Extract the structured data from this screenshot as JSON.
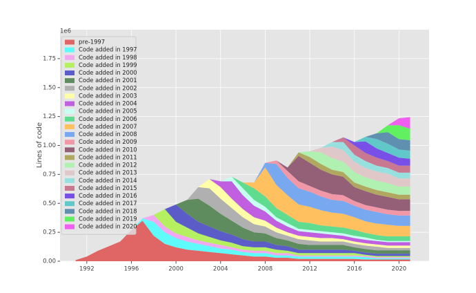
{
  "chart_data": {
    "type": "stacked_area",
    "y_label": "Lines of code",
    "y_offset_label": "1e6",
    "x": [
      1991,
      1992,
      1993,
      1994,
      1995,
      1996,
      1997,
      1998,
      1999,
      2000,
      2001,
      2002,
      2003,
      2004,
      2005,
      2006,
      2007,
      2008,
      2009,
      2010,
      2011,
      2012,
      2013,
      2014,
      2015,
      2016,
      2017,
      2018,
      2019,
      2020,
      2021
    ],
    "xlim": [
      1989.6,
      2022.7
    ],
    "xticks": [
      1992,
      1996,
      2000,
      2004,
      2008,
      2012,
      2016,
      2020
    ],
    "ylim": [
      0,
      2.0
    ],
    "yticks": [
      {
        "value": 0,
        "label": "0.00"
      },
      {
        "value": 0.25,
        "label": "0.25"
      },
      {
        "value": 0.5,
        "label": "0.50"
      },
      {
        "value": 0.75,
        "label": "0.75"
      },
      {
        "value": 1,
        "label": "1.00"
      },
      {
        "value": 1.25,
        "label": "1.25"
      },
      {
        "value": 1.5,
        "label": "1.50"
      },
      {
        "value": 1.75,
        "label": "1.75"
      }
    ],
    "grid": true,
    "legend": "upper left",
    "series": [
      {
        "name": "pre-1997",
        "color": "#e06666",
        "values": [
          0.01,
          0.04,
          0.09,
          0.13,
          0.17,
          0.27,
          0.35,
          0.22,
          0.15,
          0.12,
          0.1,
          0.09,
          0.08,
          0.07,
          0.06,
          0.05,
          0.04,
          0.04,
          0.03,
          0.03,
          0.02,
          0.02,
          0.02,
          0.02,
          0.02,
          0.02,
          0.015,
          0.015,
          0.015,
          0.015,
          0.015
        ]
      },
      {
        "name": "Code added in 1997",
        "color": "#5ffafa",
        "values": [
          0,
          0,
          0,
          0,
          0,
          0,
          0.02,
          0.12,
          0.1,
          0.08,
          0.07,
          0.06,
          0.05,
          0.04,
          0.04,
          0.03,
          0.03,
          0.03,
          0.02,
          0.02,
          0.02,
          0.02,
          0.02,
          0.02,
          0.02,
          0.02,
          0.02,
          0.01,
          0.01,
          0.01,
          0.01
        ]
      },
      {
        "name": "Code added in 1998",
        "color": "#f0a8f0",
        "values": [
          0,
          0,
          0,
          0,
          0,
          0,
          0,
          0.06,
          0.05,
          0.04,
          0.04,
          0.03,
          0.03,
          0.03,
          0.02,
          0.02,
          0.02,
          0.02,
          0.02,
          0.02,
          0.01,
          0.01,
          0.01,
          0.01,
          0.01,
          0.01,
          0.01,
          0.01,
          0.01,
          0.01,
          0.01
        ]
      },
      {
        "name": "Code added in 1999",
        "color": "#b4f060",
        "values": [
          0,
          0,
          0,
          0,
          0,
          0,
          0,
          0,
          0.15,
          0.1,
          0.08,
          0.06,
          0.05,
          0.04,
          0.04,
          0.03,
          0.03,
          0.03,
          0.03,
          0.02,
          0.02,
          0.02,
          0.02,
          0.02,
          0.02,
          0.02,
          0.01,
          0.01,
          0.01,
          0.01,
          0.01
        ]
      },
      {
        "name": "Code added in 2000",
        "color": "#5c5cc8",
        "values": [
          0,
          0,
          0,
          0,
          0,
          0,
          0,
          0,
          0,
          0.15,
          0.12,
          0.1,
          0.09,
          0.08,
          0.07,
          0.06,
          0.05,
          0.05,
          0.04,
          0.04,
          0.03,
          0.03,
          0.03,
          0.03,
          0.03,
          0.02,
          0.02,
          0.02,
          0.02,
          0.02,
          0.02
        ]
      },
      {
        "name": "Code added in 2001",
        "color": "#5e8c5e",
        "values": [
          0,
          0,
          0,
          0,
          0,
          0,
          0,
          0,
          0,
          0,
          0.12,
          0.2,
          0.18,
          0.15,
          0.12,
          0.1,
          0.08,
          0.07,
          0.06,
          0.05,
          0.05,
          0.04,
          0.04,
          0.04,
          0.04,
          0.03,
          0.03,
          0.03,
          0.03,
          0.03,
          0.03
        ]
      },
      {
        "name": "Code added in 2002",
        "color": "#b0b0b0",
        "values": [
          0,
          0,
          0,
          0,
          0,
          0,
          0,
          0,
          0,
          0,
          0,
          0.1,
          0.15,
          0.13,
          0.11,
          0.09,
          0.07,
          0.06,
          0.05,
          0.04,
          0.04,
          0.04,
          0.03,
          0.03,
          0.03,
          0.03,
          0.03,
          0.03,
          0.02,
          0.02,
          0.02
        ]
      },
      {
        "name": "Code added in 2003",
        "color": "#ffffa8",
        "values": [
          0,
          0,
          0,
          0,
          0,
          0,
          0,
          0,
          0,
          0,
          0,
          0,
          0.08,
          0.1,
          0.08,
          0.07,
          0.06,
          0.05,
          0.04,
          0.03,
          0.03,
          0.03,
          0.03,
          0.03,
          0.02,
          0.02,
          0.02,
          0.02,
          0.02,
          0.02,
          0.02
        ]
      },
      {
        "name": "Code added in 2004",
        "color": "#c060e0",
        "values": [
          0,
          0,
          0,
          0,
          0,
          0,
          0,
          0,
          0,
          0,
          0,
          0,
          0,
          0.05,
          0.15,
          0.12,
          0.1,
          0.08,
          0.06,
          0.05,
          0.04,
          0.04,
          0.04,
          0.03,
          0.03,
          0.03,
          0.03,
          0.03,
          0.03,
          0.03,
          0.03
        ]
      },
      {
        "name": "Code added in 2005",
        "color": "#c8fff4",
        "values": [
          0,
          0,
          0,
          0,
          0,
          0,
          0,
          0,
          0,
          0,
          0,
          0,
          0,
          0,
          0.04,
          0.06,
          0.05,
          0.04,
          0.03,
          0.03,
          0.02,
          0.02,
          0.02,
          0.02,
          0.02,
          0.02,
          0.02,
          0.01,
          0.01,
          0.01,
          0.01
        ]
      },
      {
        "name": "Code added in 2006",
        "color": "#60dc90",
        "values": [
          0,
          0,
          0,
          0,
          0,
          0,
          0,
          0,
          0,
          0,
          0,
          0,
          0,
          0,
          0,
          0.05,
          0.1,
          0.09,
          0.08,
          0.07,
          0.06,
          0.06,
          0.05,
          0.05,
          0.05,
          0.05,
          0.04,
          0.04,
          0.04,
          0.04,
          0.04
        ]
      },
      {
        "name": "Code added in 2007",
        "color": "#ffc060",
        "values": [
          0,
          0,
          0,
          0,
          0,
          0,
          0,
          0,
          0,
          0,
          0,
          0,
          0,
          0,
          0,
          0,
          0.05,
          0.25,
          0.2,
          0.17,
          0.15,
          0.14,
          0.13,
          0.12,
          0.12,
          0.11,
          0.1,
          0.1,
          0.1,
          0.09,
          0.09
        ]
      },
      {
        "name": "Code added in 2008",
        "color": "#78a8f0",
        "values": [
          0,
          0,
          0,
          0,
          0,
          0,
          0,
          0,
          0,
          0,
          0,
          0,
          0,
          0,
          0,
          0,
          0,
          0.04,
          0.18,
          0.15,
          0.14,
          0.13,
          0.12,
          0.11,
          0.11,
          0.1,
          0.1,
          0.1,
          0.09,
          0.09,
          0.09
        ]
      },
      {
        "name": "Code added in 2009",
        "color": "#f098a8",
        "values": [
          0,
          0,
          0,
          0,
          0,
          0,
          0,
          0,
          0,
          0,
          0,
          0,
          0,
          0,
          0,
          0,
          0,
          0,
          0.03,
          0.06,
          0.06,
          0.05,
          0.05,
          0.05,
          0.05,
          0.04,
          0.04,
          0.04,
          0.04,
          0.04,
          0.04
        ]
      },
      {
        "name": "Code added in 2010",
        "color": "#946078",
        "values": [
          0,
          0,
          0,
          0,
          0,
          0,
          0,
          0,
          0,
          0,
          0,
          0,
          0,
          0,
          0,
          0,
          0,
          0,
          0,
          0.03,
          0.22,
          0.2,
          0.18,
          0.17,
          0.16,
          0.12,
          0.12,
          0.11,
          0.11,
          0.1,
          0.1
        ]
      },
      {
        "name": "Code added in 2011",
        "color": "#b0a860",
        "values": [
          0,
          0,
          0,
          0,
          0,
          0,
          0,
          0,
          0,
          0,
          0,
          0,
          0,
          0,
          0,
          0,
          0,
          0,
          0,
          0,
          0.03,
          0.05,
          0.05,
          0.04,
          0.04,
          0.04,
          0.04,
          0.04,
          0.04,
          0.04,
          0.04
        ]
      },
      {
        "name": "Code added in 2012",
        "color": "#b0f0b0",
        "values": [
          0,
          0,
          0,
          0,
          0,
          0,
          0,
          0,
          0,
          0,
          0,
          0,
          0,
          0,
          0,
          0,
          0,
          0,
          0,
          0,
          0,
          0.05,
          0.1,
          0.1,
          0.09,
          0.09,
          0.08,
          0.08,
          0.08,
          0.07,
          0.07
        ]
      },
      {
        "name": "Code added in 2013",
        "color": "#e0c8c8",
        "values": [
          0,
          0,
          0,
          0,
          0,
          0,
          0,
          0,
          0,
          0,
          0,
          0,
          0,
          0,
          0,
          0,
          0,
          0,
          0,
          0,
          0,
          0,
          0.04,
          0.1,
          0.1,
          0.09,
          0.08,
          0.08,
          0.08,
          0.07,
          0.07
        ]
      },
      {
        "name": "Code added in 2014",
        "color": "#98e0e0",
        "values": [
          0,
          0,
          0,
          0,
          0,
          0,
          0,
          0,
          0,
          0,
          0,
          0,
          0,
          0,
          0,
          0,
          0,
          0,
          0,
          0,
          0,
          0,
          0,
          0.04,
          0.07,
          0.06,
          0.06,
          0.05,
          0.05,
          0.05,
          0.05
        ]
      },
      {
        "name": "Code added in 2015",
        "color": "#c87890",
        "values": [
          0,
          0,
          0,
          0,
          0,
          0,
          0,
          0,
          0,
          0,
          0,
          0,
          0,
          0,
          0,
          0,
          0,
          0,
          0,
          0,
          0,
          0,
          0,
          0,
          0.04,
          0.08,
          0.07,
          0.07,
          0.06,
          0.06,
          0.06
        ]
      },
      {
        "name": "Code added in 2016",
        "color": "#7850e8",
        "values": [
          0,
          0,
          0,
          0,
          0,
          0,
          0,
          0,
          0,
          0,
          0,
          0,
          0,
          0,
          0,
          0,
          0,
          0,
          0,
          0,
          0,
          0,
          0,
          0,
          0,
          0.03,
          0.1,
          0.08,
          0.07,
          0.07,
          0.06
        ]
      },
      {
        "name": "Code added in 2017",
        "color": "#60c8c8",
        "values": [
          0,
          0,
          0,
          0,
          0,
          0,
          0,
          0,
          0,
          0,
          0,
          0,
          0,
          0,
          0,
          0,
          0,
          0,
          0,
          0,
          0,
          0,
          0,
          0,
          0,
          0,
          0.04,
          0.08,
          0.08,
          0.07,
          0.07
        ]
      },
      {
        "name": "Code added in 2018",
        "color": "#6090b0",
        "values": [
          0,
          0,
          0,
          0,
          0,
          0,
          0,
          0,
          0,
          0,
          0,
          0,
          0,
          0,
          0,
          0,
          0,
          0,
          0,
          0,
          0,
          0,
          0,
          0,
          0,
          0,
          0,
          0.05,
          0.1,
          0.09,
          0.09
        ]
      },
      {
        "name": "Code added in 2019",
        "color": "#60f060",
        "values": [
          0,
          0,
          0,
          0,
          0,
          0,
          0,
          0,
          0,
          0,
          0,
          0,
          0,
          0,
          0,
          0,
          0,
          0,
          0,
          0,
          0,
          0,
          0,
          0,
          0,
          0,
          0,
          0,
          0.06,
          0.12,
          0.1
        ]
      },
      {
        "name": "Code added in 2020",
        "color": "#f060f0",
        "values": [
          0,
          0,
          0,
          0,
          0,
          0,
          0,
          0,
          0,
          0,
          0,
          0,
          0,
          0,
          0,
          0,
          0,
          0,
          0,
          0,
          0,
          0,
          0,
          0,
          0,
          0,
          0,
          0,
          0,
          0.06,
          0.1
        ]
      }
    ]
  }
}
